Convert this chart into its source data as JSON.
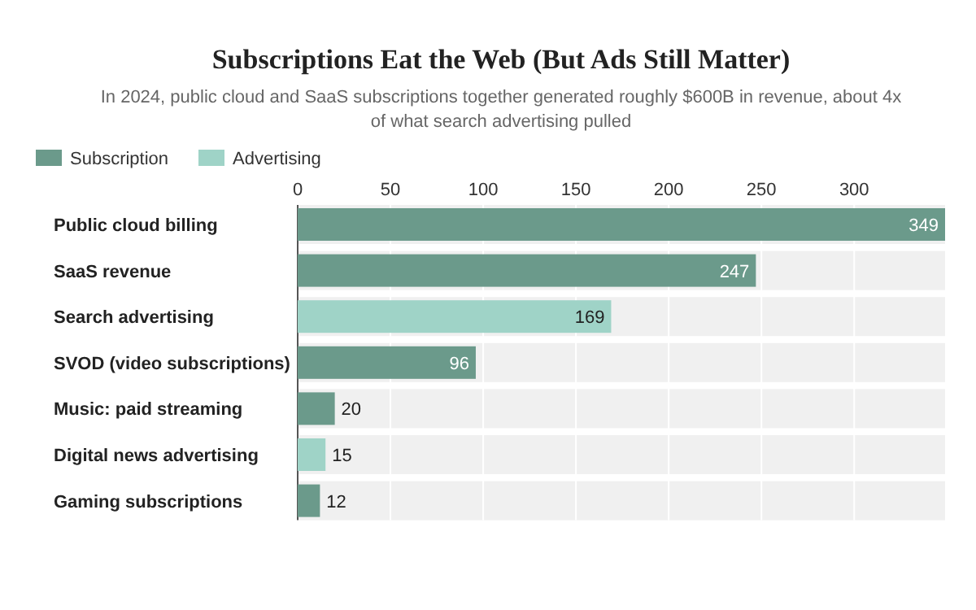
{
  "chart_data": {
    "type": "bar",
    "orientation": "horizontal",
    "title": "Subscriptions Eat the Web (But Ads Still Matter)",
    "subtitle": "In 2024, public cloud and SaaS subscriptions together generated roughly $600B in revenue, about 4x of what search advertising pulled",
    "categories": [
      "Public cloud billing",
      "SaaS revenue",
      "Search advertising",
      "SVOD (video subscriptions)",
      "Music: paid streaming",
      "Digital news advertising",
      "Gaming subscriptions"
    ],
    "series": [
      {
        "name": "Subscription",
        "color": "#6b9a8b",
        "values": [
          349,
          247,
          null,
          96,
          20,
          null,
          12
        ]
      },
      {
        "name": "Advertising",
        "color": "#9fd3c7",
        "values": [
          null,
          null,
          169,
          null,
          null,
          15,
          null
        ]
      }
    ],
    "xlim": [
      0,
      349
    ],
    "xticks": [
      0,
      50,
      100,
      150,
      200,
      250,
      300
    ],
    "grid": "x",
    "legend": "top left",
    "data_labels": true
  }
}
